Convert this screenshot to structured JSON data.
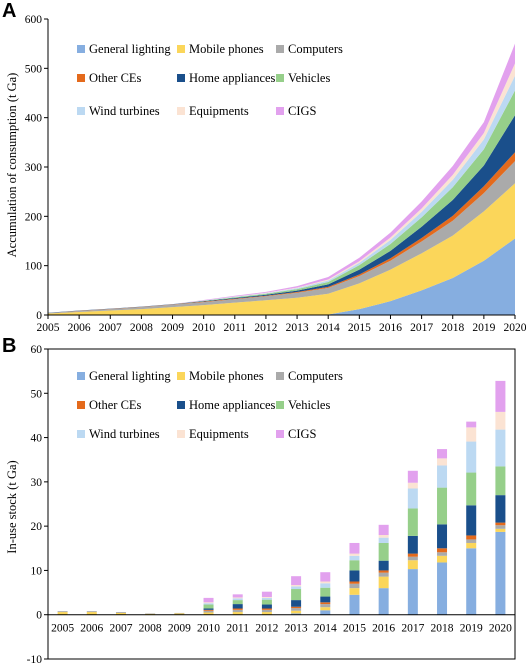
{
  "panels": [
    {
      "letter": "A"
    },
    {
      "letter": "B"
    }
  ],
  "legend_items": [
    {
      "label": "General lighting",
      "color": "#86aee0"
    },
    {
      "label": "Mobile phones",
      "color": "#fbd65a"
    },
    {
      "label": "Computers",
      "color": "#aaaaaa"
    },
    {
      "label": "Other CEs",
      "color": "#e46a1c"
    },
    {
      "label": "Home appliances",
      "color": "#1a4f8b"
    },
    {
      "label": "Vehicles",
      "color": "#96cf8a"
    },
    {
      "label": "Wind turbines",
      "color": "#bcd9f2"
    },
    {
      "label": "Equipments",
      "color": "#fbe3d3"
    },
    {
      "label": "CIGS",
      "color": "#e2a1ee"
    }
  ],
  "chart_data": [
    {
      "type": "area",
      "stacked": true,
      "ylabel": "Accumulation of consumption (t Ga)",
      "ylim": [
        0,
        600
      ],
      "yticks": [
        0,
        100,
        200,
        300,
        400,
        500,
        600
      ],
      "x": [
        "2005",
        "2006",
        "2007",
        "2008",
        "2009",
        "2010",
        "2011",
        "2012",
        "2013",
        "2014",
        "2015",
        "2016",
        "2017",
        "2018",
        "2019",
        "2020"
      ],
      "legend_position": "top-left",
      "series": [
        {
          "name": "General lighting",
          "values": [
            0,
            0,
            0,
            0,
            0,
            0,
            0,
            0,
            0,
            1,
            12,
            28,
            50,
            75,
            110,
            155
          ]
        },
        {
          "name": "Mobile phones",
          "values": [
            3,
            6,
            9,
            12,
            16,
            20,
            25,
            30,
            35,
            42,
            52,
            64,
            75,
            86,
            100,
            112
          ]
        },
        {
          "name": "Computers",
          "values": [
            1,
            2,
            3,
            4,
            5,
            6,
            7,
            8,
            10,
            12,
            15,
            18,
            24,
            30,
            37,
            45
          ]
        },
        {
          "name": "Other CEs",
          "values": [
            0,
            0.5,
            0.5,
            0.5,
            0.5,
            1,
            1,
            1,
            1.5,
            2,
            3,
            5,
            7,
            10,
            14,
            18
          ]
        },
        {
          "name": "Home appliances",
          "values": [
            0.5,
            0.5,
            0.5,
            0.5,
            0.5,
            1,
            1.5,
            2,
            3,
            5,
            10,
            15,
            23,
            32,
            42,
            75
          ]
        },
        {
          "name": "Vehicles",
          "values": [
            0,
            0,
            0,
            0,
            0,
            1,
            1.5,
            2,
            3,
            5,
            9,
            14,
            19,
            26,
            33,
            50
          ]
        },
        {
          "name": "Wind turbines",
          "values": [
            0,
            0,
            0,
            0,
            0,
            0.5,
            1,
            1,
            2,
            3,
            5,
            8,
            11,
            15,
            20,
            30
          ]
        },
        {
          "name": "Equipments",
          "values": [
            0,
            0,
            0,
            0,
            0,
            0,
            0.5,
            1,
            1,
            2,
            3,
            5,
            7,
            10,
            13,
            25
          ]
        },
        {
          "name": "CIGS",
          "values": [
            0,
            0,
            0,
            0,
            0,
            1,
            1.5,
            2,
            3,
            5,
            7,
            10,
            14,
            18,
            22,
            40
          ]
        }
      ]
    },
    {
      "type": "bar",
      "stacked": true,
      "ylabel": "In-use stock (t Ga)",
      "ylim": [
        -10,
        60
      ],
      "yticks": [
        -10,
        0,
        10,
        20,
        30,
        40,
        50,
        60
      ],
      "categories": [
        "2005",
        "2006",
        "2007",
        "2008",
        "2009",
        "2010",
        "2011",
        "2012",
        "2013",
        "2014",
        "2015",
        "2016",
        "2017",
        "2018",
        "2019",
        "2020"
      ],
      "legend_position": "top-left",
      "series": [
        {
          "name": "General lighting",
          "values": [
            0,
            0,
            0,
            0,
            0,
            0,
            0,
            0,
            0.3,
            1,
            4.5,
            6,
            10.3,
            11.8,
            15,
            18.7
          ]
        },
        {
          "name": "Mobile phones",
          "values": [
            0.6,
            0.6,
            0.4,
            0.2,
            0.3,
            0.5,
            0.6,
            0.6,
            0.6,
            0.7,
            1.5,
            2.6,
            2,
            1.5,
            1.2,
            0.7
          ]
        },
        {
          "name": "Computers",
          "values": [
            0.2,
            0.2,
            0.2,
            0.1,
            0.1,
            0.4,
            0.5,
            0.5,
            0.6,
            0.7,
            1,
            0.9,
            0.8,
            0.8,
            0.8,
            0.8
          ]
        },
        {
          "name": "Other CEs",
          "values": [
            0,
            0,
            0,
            0,
            0,
            0.2,
            0.3,
            0.3,
            0.3,
            0.4,
            0.5,
            0.5,
            0.7,
            0.9,
            0.9,
            0.6
          ]
        },
        {
          "name": "Home appliances",
          "values": [
            0,
            0,
            0,
            0,
            0,
            0.3,
            1,
            0.9,
            1.5,
            1.3,
            2.5,
            2.2,
            4,
            5.4,
            6.8,
            6.2
          ]
        },
        {
          "name": "Vehicles",
          "values": [
            0,
            0,
            0,
            0,
            0,
            0.9,
            0.9,
            1.1,
            2.5,
            2,
            2.3,
            4,
            6.2,
            8.3,
            7.4,
            6.5
          ]
        },
        {
          "name": "Wind turbines",
          "values": [
            0,
            0,
            0,
            0,
            0,
            0.3,
            0.4,
            0.4,
            0.6,
            1,
            1,
            1.2,
            4.5,
            5,
            7,
            8.3
          ]
        },
        {
          "name": "Equipments",
          "values": [
            0,
            0,
            0,
            0,
            0,
            0.2,
            0.2,
            0.2,
            0.3,
            0.4,
            0.5,
            0.6,
            1.3,
            1.6,
            3.2,
            4
          ]
        },
        {
          "name": "CIGS",
          "values": [
            0,
            0,
            0,
            0,
            0,
            1,
            0.7,
            1.2,
            2,
            2.1,
            2.4,
            2.3,
            2.7,
            2.1,
            1.3,
            7
          ]
        }
      ]
    }
  ]
}
